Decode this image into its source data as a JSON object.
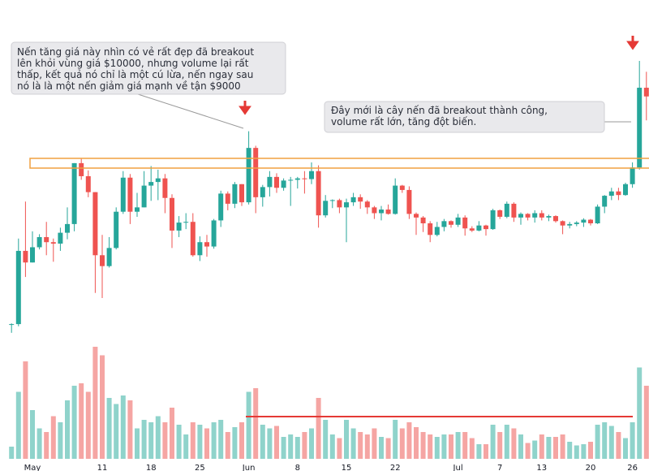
{
  "chart_data": {
    "type": "candlestick",
    "categories": [
      null,
      null,
      null,
      "May",
      null,
      null,
      null,
      null,
      null,
      null,
      null,
      null,
      null,
      "11",
      null,
      null,
      null,
      null,
      null,
      null,
      "18",
      null,
      null,
      null,
      null,
      null,
      null,
      "25",
      null,
      null,
      null,
      null,
      null,
      null,
      "Jun",
      null,
      null,
      null,
      null,
      null,
      null,
      "8",
      null,
      null,
      null,
      null,
      null,
      null,
      "15",
      null,
      null,
      null,
      null,
      null,
      null,
      "22",
      null,
      null,
      null,
      null,
      null,
      null,
      null,
      null,
      "Jul",
      null,
      null,
      null,
      null,
      null,
      "7",
      null,
      null,
      null,
      null,
      null,
      "13",
      null,
      null,
      null,
      null,
      null,
      null,
      "20",
      null,
      null,
      null,
      null,
      null,
      "26",
      null,
      null
    ],
    "open": [
      7760,
      7770,
      8780,
      8620,
      8830,
      8970,
      8900,
      8880,
      9030,
      9150,
      9990,
      9810,
      9590,
      8720,
      8570,
      8820,
      9320,
      9790,
      9320,
      9380,
      9680,
      9730,
      9780,
      9510,
      9060,
      9170,
      9180,
      8720,
      8900,
      8840,
      9200,
      9570,
      9430,
      9700,
      9450,
      10200,
      9520,
      9660,
      9800,
      9650,
      9750,
      9760,
      9780,
      9770,
      9880,
      9270,
      9470,
      9480,
      9380,
      9450,
      9520,
      9460,
      9380,
      9300,
      9350,
      9290,
      9680,
      9620,
      9290,
      9240,
      9160,
      9000,
      9110,
      9190,
      9140,
      9240,
      9090,
      9060,
      9130,
      9080,
      9340,
      9250,
      9430,
      9240,
      9290,
      9240,
      9300,
      9240,
      9260,
      9190,
      9130,
      9150,
      9170,
      9210,
      9160,
      9390,
      9540,
      9600,
      9550,
      9700,
      9930,
      11030
    ],
    "high": [
      7780,
      8950,
      9460,
      9050,
      9010,
      9180,
      8950,
      9100,
      9380,
      9990,
      10050,
      9890,
      9590,
      9000,
      8970,
      9380,
      9880,
      9840,
      9580,
      9880,
      9950,
      9900,
      9840,
      9560,
      9260,
      9300,
      9300,
      8980,
      9000,
      9220,
      9610,
      9600,
      9730,
      9700,
      10430,
      10230,
      9690,
      9880,
      9850,
      9780,
      9800,
      9800,
      9880,
      10000,
      9960,
      9550,
      9490,
      9500,
      9500,
      9580,
      9560,
      9480,
      9400,
      9400,
      9420,
      9780,
      9690,
      9670,
      9310,
      9260,
      9190,
      9180,
      9220,
      9200,
      9290,
      9270,
      9120,
      9190,
      9140,
      9360,
      9350,
      9460,
      9450,
      9310,
      9300,
      9340,
      9340,
      9280,
      9270,
      9200,
      9180,
      9190,
      9230,
      9220,
      9420,
      9550,
      9650,
      9650,
      9720,
      10000,
      11400,
      11250
    ],
    "low": [
      7650,
      7740,
      8420,
      8620,
      8800,
      8720,
      8630,
      8780,
      8940,
      9050,
      9760,
      9520,
      8200,
      8130,
      8550,
      8800,
      9290,
      9150,
      9250,
      9380,
      9470,
      9480,
      9300,
      8820,
      8970,
      9080,
      8700,
      8640,
      8700,
      8810,
      9110,
      9340,
      9370,
      9400,
      9420,
      9300,
      9390,
      9530,
      9580,
      9610,
      9400,
      9640,
      9570,
      9700,
      9100,
      9240,
      9370,
      9300,
      8900,
      9400,
      9360,
      9290,
      9220,
      9200,
      9280,
      9280,
      9580,
      9220,
      9000,
      9040,
      8900,
      8980,
      9050,
      9100,
      9110,
      8990,
      9040,
      9050,
      8990,
      9070,
      9220,
      9230,
      9180,
      9140,
      9200,
      9170,
      9200,
      9190,
      9170,
      9010,
      9090,
      9120,
      9110,
      9130,
      9150,
      9300,
      9480,
      9480,
      9540,
      9650,
      9900,
      10580
    ],
    "close": [
      7770,
      8780,
      8620,
      8830,
      8970,
      8900,
      8880,
      9030,
      9150,
      9990,
      9810,
      9590,
      8720,
      8570,
      8820,
      9320,
      9790,
      9320,
      9380,
      9680,
      9730,
      9780,
      9510,
      9060,
      9170,
      9180,
      8720,
      8900,
      8840,
      9200,
      9570,
      9430,
      9700,
      9450,
      10200,
      9520,
      9660,
      9800,
      9650,
      9750,
      9760,
      9780,
      9770,
      9880,
      9270,
      9470,
      9480,
      9380,
      9450,
      9520,
      9460,
      9380,
      9300,
      9350,
      9290,
      9680,
      9620,
      9290,
      9240,
      9160,
      9000,
      9110,
      9190,
      9140,
      9240,
      9090,
      9060,
      9130,
      9080,
      9340,
      9250,
      9430,
      9240,
      9290,
      9240,
      9300,
      9240,
      9260,
      9190,
      9130,
      9150,
      9170,
      9210,
      9160,
      9390,
      9540,
      9600,
      9550,
      9700,
      9930,
      11030,
      10910
    ],
    "volume": [
      10,
      55,
      80,
      40,
      25,
      22,
      35,
      30,
      48,
      60,
      62,
      55,
      92,
      85,
      50,
      45,
      52,
      48,
      25,
      32,
      30,
      35,
      30,
      42,
      28,
      20,
      30,
      28,
      25,
      30,
      32,
      22,
      26,
      30,
      55,
      58,
      28,
      25,
      27,
      18,
      20,
      18,
      22,
      25,
      50,
      32,
      20,
      17,
      32,
      25,
      22,
      20,
      25,
      18,
      17,
      32,
      25,
      30,
      26,
      22,
      20,
      18,
      20,
      20,
      22,
      22,
      17,
      12,
      12,
      28,
      22,
      28,
      25,
      20,
      13,
      15,
      20,
      18,
      18,
      20,
      14,
      11,
      12,
      14,
      28,
      30,
      27,
      22,
      17,
      30,
      75,
      60
    ],
    "up_color": "#26a69a",
    "down_color": "#ef5350",
    "up_volume_color": "#8fd3cb",
    "down_volume_color": "#f5a5a3",
    "ylim": [
      7200,
      12240
    ],
    "y2lim": [
      0,
      100
    ],
    "annotations": [
      [
        "Nến tăng giá này nhìn có vẻ rất đẹp đã breakout",
        "lên khỏi vùng giá $10000, nhưng volume lại rất",
        "thấp, kết quả nó chỉ là một cú lừa, nến ngay sau",
        "nó là là một nến giảm giá mạnh về tận $9000"
      ],
      [
        "Đây mới là cây nến đã breakout thành công,",
        "volume rất lớn, tăng đột biến."
      ]
    ]
  }
}
